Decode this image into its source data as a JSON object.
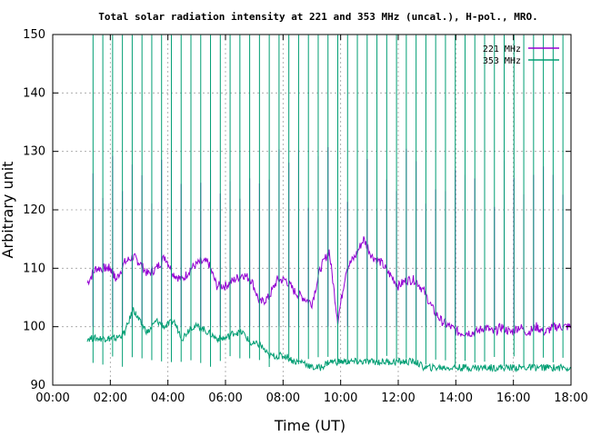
{
  "chart_data": {
    "type": "line",
    "title": "Total solar radiation intensity at 221 and 353 MHz (uncal.), H-pol., MRO.",
    "xlabel": "Time (UT)",
    "ylabel": "Arbitrary unit",
    "xlim": [
      0,
      18
    ],
    "ylim": [
      90,
      150
    ],
    "x_ticks": [
      "00:00",
      "02:00",
      "04:00",
      "06:00",
      "08:00",
      "10:00",
      "12:00",
      "14:00",
      "16:00",
      "18:00"
    ],
    "y_ticks": [
      "90",
      "100",
      "110",
      "120",
      "130",
      "140",
      "150"
    ],
    "grid": true,
    "legend": "top-right",
    "series": [
      {
        "name": "221 MHz",
        "color": "#9400d3",
        "x": [
          1.2,
          1.5,
          1.8,
          2.0,
          2.2,
          2.5,
          2.8,
          3.0,
          3.3,
          3.6,
          3.9,
          4.2,
          4.5,
          4.8,
          5.1,
          5.4,
          5.7,
          6.0,
          6.3,
          6.6,
          6.9,
          7.2,
          7.5,
          7.8,
          8.1,
          8.4,
          8.7,
          9.0,
          9.3,
          9.6,
          9.9,
          10.2,
          10.5,
          10.8,
          11.1,
          11.4,
          11.7,
          12.0,
          12.3,
          12.6,
          12.9,
          13.2,
          13.5,
          13.8,
          14.1,
          14.4,
          14.7,
          15.0,
          15.3,
          15.6,
          15.9,
          16.2,
          16.5,
          16.8,
          17.1,
          17.4,
          17.7,
          18.0
        ],
        "values": [
          107.5,
          110,
          110,
          110,
          108,
          111,
          112,
          111,
          109,
          110,
          112,
          109,
          108,
          110,
          111,
          111,
          107,
          107,
          108,
          109,
          108,
          104,
          105,
          108,
          108,
          106,
          105,
          104,
          110,
          113,
          101,
          110,
          112,
          115,
          112,
          111,
          109,
          107,
          108,
          108,
          106,
          103,
          101,
          100,
          99,
          99,
          99,
          100,
          99,
          100,
          99,
          100,
          99,
          100,
          99,
          100,
          100,
          100
        ]
      },
      {
        "name": "353 MHz",
        "color": "#009e73",
        "x": [
          1.2,
          1.5,
          1.8,
          2.0,
          2.2,
          2.5,
          2.8,
          3.0,
          3.3,
          3.6,
          3.9,
          4.2,
          4.5,
          4.8,
          5.1,
          5.4,
          5.7,
          6.0,
          6.3,
          6.6,
          6.9,
          7.2,
          7.5,
          7.8,
          8.1,
          8.4,
          8.7,
          9.0,
          9.3,
          9.6,
          9.9,
          10.2,
          10.5,
          10.8,
          11.1,
          11.4,
          11.7,
          12.0,
          12.3,
          12.6,
          12.9,
          13.2,
          13.5,
          13.8,
          14.1,
          14.4,
          14.7,
          15.0,
          15.3,
          15.6,
          15.9,
          16.2,
          16.5,
          16.8,
          17.1,
          17.4,
          17.7,
          18.0
        ],
        "values": [
          98,
          98,
          98,
          98,
          98,
          99,
          103,
          101,
          99,
          101,
          100,
          101,
          98,
          100,
          100,
          99,
          98,
          98,
          99,
          99,
          97,
          97,
          95,
          95,
          95,
          94,
          94,
          93,
          93,
          94,
          94,
          94,
          94,
          94,
          94,
          94,
          94,
          94,
          94,
          94,
          93,
          93,
          93,
          93,
          93,
          93,
          93,
          93,
          93,
          93,
          93,
          93,
          93,
          93,
          93,
          93,
          93,
          93
        ]
      }
    ]
  }
}
